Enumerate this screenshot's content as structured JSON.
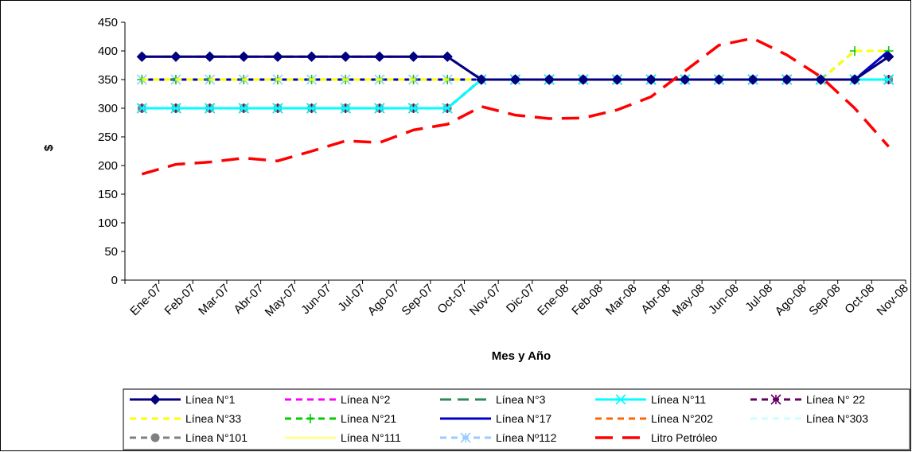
{
  "chart_data": {
    "type": "line",
    "title": "",
    "xlabel": "Mes y Año",
    "ylabel": "$",
    "ylim": [
      0,
      450
    ],
    "yticks": [
      0,
      50,
      100,
      150,
      200,
      250,
      300,
      350,
      400,
      450
    ],
    "grid": false,
    "legend_position": "bottom",
    "categories": [
      "Ene-07",
      "Feb-07",
      "Mar-07",
      "Abr-07",
      "May-07",
      "Jun-07",
      "Jul-07",
      "Ago-07",
      "Sep-07",
      "Oct-07",
      "Nov-07",
      "Dic-07",
      "Ene-08",
      "Feb-08",
      "Mar-08",
      "Abr-08",
      "May-08",
      "Jun-08",
      "Jul-08",
      "Ago-08",
      "Sep-08",
      "Oct-08",
      "Nov-08"
    ],
    "series": [
      {
        "name": "Línea N°1",
        "color": "#000080",
        "dash": "solid",
        "marker": "diamond",
        "values": [
          390,
          390,
          390,
          390,
          390,
          390,
          390,
          390,
          390,
          390,
          350,
          350,
          350,
          350,
          350,
          350,
          350,
          350,
          350,
          350,
          350,
          350,
          390
        ]
      },
      {
        "name": "Línea N°2",
        "color": "#FF00FF",
        "dash": "dash",
        "marker": "none",
        "values": [
          390,
          390,
          390,
          390,
          390,
          390,
          390,
          390,
          390,
          390,
          350,
          350,
          350,
          350,
          350,
          350,
          350,
          350,
          350,
          350,
          350,
          350,
          390
        ]
      },
      {
        "name": "Línea N°3",
        "color": "#2E8B57",
        "dash": "longdash",
        "marker": "none",
        "values": [
          390,
          390,
          390,
          390,
          390,
          390,
          390,
          390,
          390,
          390,
          350,
          350,
          350,
          350,
          350,
          350,
          350,
          350,
          350,
          350,
          350,
          350,
          390
        ]
      },
      {
        "name": "Línea N°11",
        "color": "#00FFFF",
        "dash": "solid",
        "marker": "x",
        "values": [
          300,
          300,
          300,
          300,
          300,
          300,
          300,
          300,
          300,
          300,
          350,
          350,
          350,
          350,
          350,
          350,
          350,
          350,
          350,
          350,
          350,
          350,
          350
        ]
      },
      {
        "name": "Línea N° 22",
        "color": "#660066",
        "dash": "dash",
        "marker": "star",
        "values": [
          300,
          300,
          300,
          300,
          300,
          300,
          300,
          300,
          300,
          300,
          350,
          350,
          350,
          350,
          350,
          350,
          350,
          350,
          350,
          350,
          350,
          350,
          350
        ]
      },
      {
        "name": "Línea N°33",
        "color": "#FFFF00",
        "dash": "dash",
        "marker": "none",
        "values": [
          350,
          350,
          350,
          350,
          350,
          350,
          350,
          350,
          350,
          350,
          350,
          350,
          350,
          350,
          350,
          350,
          350,
          350,
          350,
          350,
          350,
          400,
          400
        ]
      },
      {
        "name": "Línea N°21",
        "color": "#00CC00",
        "dash": "dash",
        "marker": "plus",
        "values": [
          350,
          350,
          350,
          350,
          350,
          350,
          350,
          350,
          350,
          350,
          350,
          350,
          350,
          350,
          350,
          350,
          350,
          350,
          350,
          350,
          350,
          400,
          400
        ]
      },
      {
        "name": "Línea N°17",
        "color": "#0000CC",
        "dash": "solid",
        "marker": "none",
        "values": [
          350,
          350,
          350,
          350,
          350,
          350,
          350,
          350,
          350,
          350,
          350,
          350,
          350,
          350,
          350,
          350,
          350,
          350,
          350,
          350,
          350,
          350,
          400
        ]
      },
      {
        "name": "Línea N°202",
        "color": "#FF6600",
        "dash": "dash",
        "marker": "none",
        "values": [
          300,
          300,
          300,
          300,
          300,
          300,
          300,
          300,
          300,
          300,
          350,
          350,
          350,
          350,
          350,
          350,
          350,
          350,
          350,
          350,
          350,
          350,
          350
        ]
      },
      {
        "name": "Línea N°303",
        "color": "#CCFFFF",
        "dash": "dash",
        "marker": "none",
        "values": [
          350,
          350,
          350,
          350,
          350,
          350,
          350,
          350,
          350,
          350,
          350,
          350,
          350,
          350,
          350,
          350,
          350,
          350,
          350,
          350,
          350,
          350,
          350
        ]
      },
      {
        "name": "Línea N°101",
        "color": "#808080",
        "dash": "dash",
        "marker": "circle",
        "values": [
          300,
          300,
          300,
          300,
          300,
          300,
          300,
          300,
          300,
          300,
          350,
          350,
          350,
          350,
          350,
          350,
          350,
          350,
          350,
          350,
          350,
          350,
          350
        ]
      },
      {
        "name": "Línea N°111",
        "color": "#FFFF99",
        "dash": "solid",
        "marker": "none",
        "values": [
          350,
          350,
          350,
          350,
          350,
          350,
          350,
          350,
          350,
          350,
          350,
          350,
          350,
          350,
          350,
          350,
          350,
          350,
          350,
          350,
          350,
          350,
          350
        ]
      },
      {
        "name": "Línea Nº112",
        "color": "#99CCFF",
        "dash": "dash",
        "marker": "xstar",
        "values": [
          350,
          350,
          350,
          350,
          350,
          350,
          350,
          350,
          350,
          350,
          350,
          350,
          350,
          350,
          350,
          350,
          350,
          350,
          350,
          350,
          350,
          350,
          350
        ]
      },
      {
        "name": "Litro Petróleo",
        "color": "#FF0000",
        "dash": "bigdash",
        "marker": "none",
        "values": [
          185,
          202,
          206,
          213,
          208,
          225,
          243,
          240,
          262,
          272,
          303,
          288,
          282,
          283,
          297,
          320,
          365,
          410,
          422,
          393,
          355,
          300,
          233
        ]
      }
    ]
  }
}
